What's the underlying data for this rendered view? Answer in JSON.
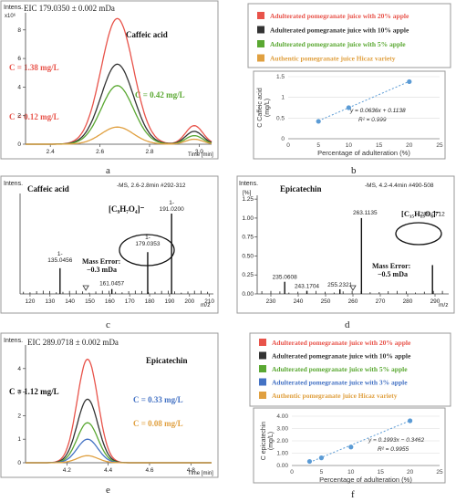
{
  "colors": {
    "red": "#e8534a",
    "black": "#333333",
    "green": "#5aa832",
    "blue": "#4472c4",
    "orange": "#e0a040",
    "point": "#5b9bd5"
  },
  "panels": {
    "a": {
      "letter": "a",
      "eic": "EIC 179.0350 ± 0.002 mDa",
      "intens": "Intens.",
      "exp": "x10⁶",
      "compound": "Caffeic acid",
      "time_label": "Time [min]",
      "c1": "C = 1.38 mg/L",
      "c2": "C = 0.42 mg/L",
      "c3": "C = 0.12 mg/L"
    },
    "b": {
      "letter": "b",
      "equation": "y = 0.0636x + 0.1138",
      "r2": "R² = 0.999"
    },
    "c": {
      "letter": "c",
      "intens": "Intens.",
      "unit": "[%]",
      "compound": "Caffeic acid",
      "header": "-MS, 2.6-2.8min #292-312",
      "formula": "[C₉H₇O₄]⁻",
      "error1": "Mass Error:",
      "error2": "−0.3 mDa",
      "peak_labels": [
        "1-\n135.0456",
        "1-\n179.0353",
        "1-\n191.0200",
        "161.0457"
      ],
      "mz": "m/z"
    },
    "d": {
      "letter": "d",
      "intens": "Intens.",
      "unit": "[%]",
      "compound": "Epicatechin",
      "header": "-MS, 4.2-4.4min #490-508",
      "formula": "[C₁₅H₁₃O₆]⁻",
      "error1": "Mass Error:",
      "error2": "−0.5 mDa",
      "peak_labels": [
        "263.1135",
        "289.0712",
        "235.0608",
        "243.1704",
        "255.2321"
      ],
      "mz": "m/z"
    },
    "e": {
      "letter": "e",
      "eic": "EIC 289.0718 ± 0.002 mDa",
      "intens": "Intens.",
      "compound": "Epicatechin",
      "time_label": "Time [min]",
      "c1": "C = 1.12 mg/L",
      "c2": "C = 0.33 mg/L",
      "c3": "C = 0.08 mg/L"
    },
    "f": {
      "letter": "f",
      "equation": "y = 0.1993x − 0.3462",
      "r2": "R² = 0.9955"
    }
  },
  "legend_top": [
    {
      "label": "Adulterated pomegranate juice with 20% apple",
      "color": "#e8534a"
    },
    {
      "label": "Adulterated pomegranate juice with 10% apple",
      "color": "#333333"
    },
    {
      "label": "Adulterated pomegranate juice with 5% apple",
      "color": "#5aa832"
    },
    {
      "label": "Authentic pomegranate juice Hicaz variety",
      "color": "#e0a040"
    }
  ],
  "legend_bottom": [
    {
      "label": "Adulterated pomegranate juice with 20% apple",
      "color": "#e8534a"
    },
    {
      "label": "Adulterated pomegranate juice with 10% apple",
      "color": "#333333"
    },
    {
      "label": "Adulterated pomegranate juice with 5% apple",
      "color": "#5aa832"
    },
    {
      "label": "Adulterated pomegranate juice with 3% apple",
      "color": "#4472c4"
    },
    {
      "label": "Authentic pomegranate juice Hicaz variety",
      "color": "#e0a040"
    }
  ],
  "chart_data": [
    {
      "id": "a",
      "type": "line",
      "title": "Caffeic acid",
      "xlabel": "Time [min]",
      "ylabel": "Intens.",
      "xlim": [
        2.3,
        3.05
      ],
      "ylim": [
        0,
        9.2
      ],
      "x_ticks": [
        2.4,
        2.6,
        2.8,
        3.0
      ],
      "y_ticks": [
        0,
        2,
        4,
        6,
        8
      ],
      "peak_center": 2.67,
      "peak_width": 0.065,
      "series": [
        {
          "color": "#e8534a",
          "peak": 8.8
        },
        {
          "color": "#333333",
          "peak": 5.6
        },
        {
          "color": "#5aa832",
          "peak": 4.1
        },
        {
          "color": "#e0a040",
          "peak": 1.2
        }
      ],
      "minor_peak": {
        "center": 2.98,
        "width": 0.035,
        "heights": [
          1.3,
          0.9,
          0.6,
          0.35
        ]
      }
    },
    {
      "id": "b",
      "type": "scatter",
      "xlabel": "Percentage of adulteration (%)",
      "ylabel": "C Caffeic acid\n(mg/L)",
      "xlim": [
        0,
        25
      ],
      "ylim": [
        0,
        1.5
      ],
      "x_ticks": [
        0,
        5,
        10,
        15,
        20,
        25
      ],
      "y_ticks": [
        0,
        0.5,
        1,
        1.5
      ],
      "x": [
        5,
        10,
        20
      ],
      "y": [
        0.42,
        0.75,
        1.38
      ],
      "fit": {
        "slope": 0.0636,
        "intercept": 0.1138
      }
    },
    {
      "id": "c",
      "type": "bar",
      "title": "Caffeic acid",
      "xlabel": "m/z",
      "xlim": [
        115,
        212
      ],
      "ylim": [
        0,
        1.25
      ],
      "x_ticks": [
        120,
        130,
        140,
        150,
        160,
        170,
        180,
        190,
        200,
        210
      ],
      "peaks": [
        {
          "mz": 135.0456,
          "rel": 0.32
        },
        {
          "mz": 161.0457,
          "rel": 0.06
        },
        {
          "mz": 179.0353,
          "rel": 0.52
        },
        {
          "mz": 191.02,
          "rel": 1.0
        }
      ]
    },
    {
      "id": "d",
      "type": "bar",
      "title": "Epicatechin",
      "xlabel": "m/z",
      "xlim": [
        225,
        295
      ],
      "ylim": [
        0,
        1.3
      ],
      "x_ticks": [
        230,
        240,
        250,
        260,
        270,
        280,
        290
      ],
      "y_ticks": [
        0,
        0.25,
        0.5,
        0.75,
        1.0,
        1.25
      ],
      "peaks": [
        {
          "mz": 235.0608,
          "rel": 0.16
        },
        {
          "mz": 243.1704,
          "rel": 0.04
        },
        {
          "mz": 255.2321,
          "rel": 0.06
        },
        {
          "mz": 263.1135,
          "rel": 1.0
        },
        {
          "mz": 289.0712,
          "rel": 0.38
        }
      ]
    },
    {
      "id": "e",
      "type": "line",
      "title": "Epicatechin",
      "xlabel": "Time [min]",
      "ylabel": "Intens.",
      "xlim": [
        4.0,
        4.9
      ],
      "ylim": [
        0,
        5
      ],
      "x_ticks": [
        4.2,
        4.4,
        4.6,
        4.8
      ],
      "y_ticks": [
        0,
        1,
        2,
        3,
        4
      ],
      "peak_center": 4.3,
      "peak_width": 0.05,
      "series": [
        {
          "color": "#e8534a",
          "peak": 4.4
        },
        {
          "color": "#333333",
          "peak": 2.7
        },
        {
          "color": "#5aa832",
          "peak": 1.7
        },
        {
          "color": "#4472c4",
          "peak": 1.0
        },
        {
          "color": "#e0a040",
          "peak": 0.3
        }
      ]
    },
    {
      "id": "f",
      "type": "scatter",
      "xlabel": "Percentage of adulteration (%)",
      "ylabel": "C epicatechin\n(mg/L)",
      "xlim": [
        0,
        25
      ],
      "ylim": [
        0,
        4
      ],
      "x_ticks": [
        0,
        5,
        10,
        15,
        20,
        25
      ],
      "y_ticks": [
        0,
        1,
        2,
        3,
        4
      ],
      "y_tick_labels": [
        "0.00",
        "1.00",
        "2.00",
        "3.00",
        "4.00"
      ],
      "x": [
        3,
        5,
        10,
        20
      ],
      "y": [
        0.33,
        0.62,
        1.5,
        3.63
      ],
      "fit": {
        "slope": 0.1993,
        "intercept": -0.3462
      }
    }
  ]
}
